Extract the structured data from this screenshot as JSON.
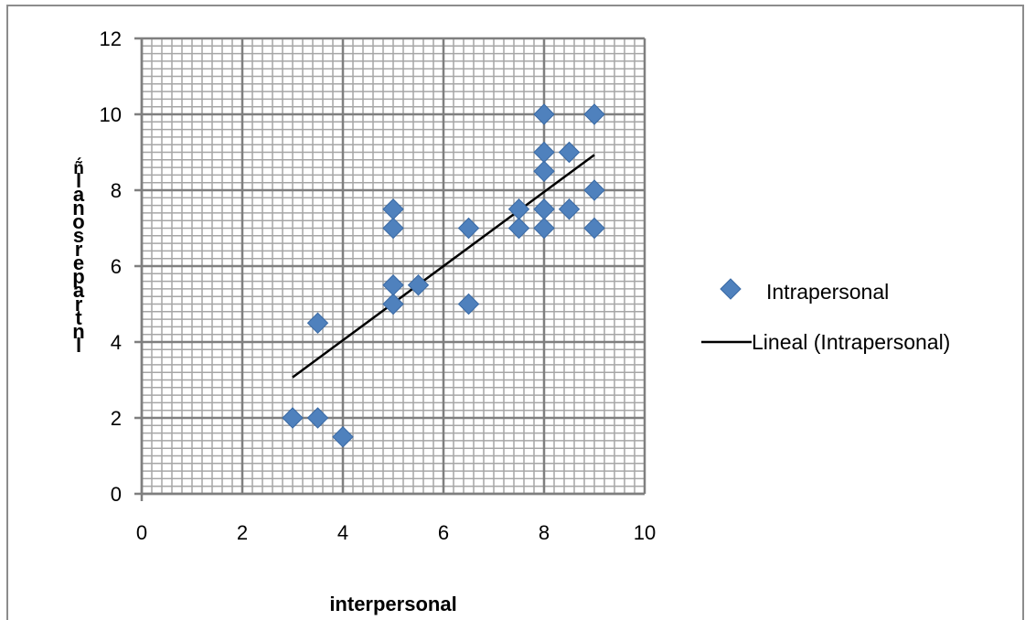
{
  "chart_data": {
    "type": "scatter",
    "xlabel": "interpersonal",
    "ylabel": "ñ́ l a n o s r e p a r t n l",
    "xlim": [
      0,
      10
    ],
    "ylim": [
      0,
      12
    ],
    "x_ticks": [
      0,
      2,
      4,
      6,
      8,
      10
    ],
    "y_ticks": [
      0,
      2,
      4,
      6,
      8,
      10,
      12
    ],
    "major_grid": true,
    "minor_grid": true,
    "legend_position": "right",
    "series": [
      {
        "name": "Intrapersonal",
        "marker": "diamond",
        "color": "#4f81bd",
        "x": [
          3,
          3.5,
          3.5,
          4,
          5,
          5,
          5,
          5,
          5.5,
          6.5,
          6.5,
          7.5,
          7.5,
          8,
          8,
          8,
          8,
          8,
          8.5,
          8.5,
          9,
          9,
          9
        ],
        "y": [
          2,
          2,
          4.5,
          1.5,
          5,
          5.5,
          7,
          7.5,
          5.5,
          5,
          7,
          7,
          7.5,
          7,
          7.5,
          8.5,
          9,
          10,
          7.5,
          9,
          7,
          8,
          10
        ]
      }
    ],
    "trendline": {
      "name": "Lineal (Intrapersonal)",
      "type": "linear",
      "color": "#000000",
      "x": [
        3,
        9
      ],
      "y": [
        3.07,
        8.93
      ]
    }
  }
}
